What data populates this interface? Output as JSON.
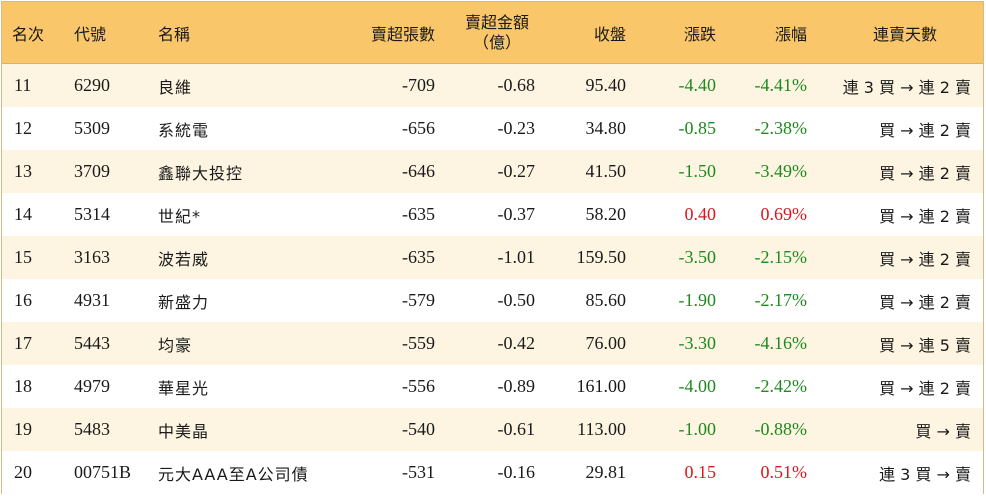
{
  "header": {
    "rank": "名次",
    "code": "代號",
    "name": "名稱",
    "sell_qty": "賣超張數",
    "sell_amt_line1": "賣超金額",
    "sell_amt_line2": "（億）",
    "close": "收盤",
    "change": "漲跌",
    "pct": "漲幅",
    "streak": "連賣天數"
  },
  "colors": {
    "header_bg": "#f9c669",
    "stripe_bg": "#fdf5e2",
    "down": "#1e8a1e",
    "up": "#e0141e"
  },
  "rows": [
    {
      "rank": "11",
      "code": "6290",
      "name": "良維",
      "qty": "-709",
      "amt": "-0.68",
      "close": "95.40",
      "chg": "-4.40",
      "pct": "-4.41%",
      "dir": "down",
      "streak": "連 3 買 → 連 2 賣"
    },
    {
      "rank": "12",
      "code": "5309",
      "name": "系統電",
      "qty": "-656",
      "amt": "-0.23",
      "close": "34.80",
      "chg": "-0.85",
      "pct": "-2.38%",
      "dir": "down",
      "streak": "買 → 連 2 賣"
    },
    {
      "rank": "13",
      "code": "3709",
      "name": "鑫聯大投控",
      "qty": "-646",
      "amt": "-0.27",
      "close": "41.50",
      "chg": "-1.50",
      "pct": "-3.49%",
      "dir": "down",
      "streak": "買 → 連 2 賣"
    },
    {
      "rank": "14",
      "code": "5314",
      "name": "世紀*",
      "qty": "-635",
      "amt": "-0.37",
      "close": "58.20",
      "chg": "0.40",
      "pct": "0.69%",
      "dir": "up",
      "streak": "買 → 連 2 賣"
    },
    {
      "rank": "15",
      "code": "3163",
      "name": "波若威",
      "qty": "-635",
      "amt": "-1.01",
      "close": "159.50",
      "chg": "-3.50",
      "pct": "-2.15%",
      "dir": "down",
      "streak": "買 → 連 2 賣"
    },
    {
      "rank": "16",
      "code": "4931",
      "name": "新盛力",
      "qty": "-579",
      "amt": "-0.50",
      "close": "85.60",
      "chg": "-1.90",
      "pct": "-2.17%",
      "dir": "down",
      "streak": "買 → 連 2 賣"
    },
    {
      "rank": "17",
      "code": "5443",
      "name": "均豪",
      "qty": "-559",
      "amt": "-0.42",
      "close": "76.00",
      "chg": "-3.30",
      "pct": "-4.16%",
      "dir": "down",
      "streak": "買 → 連 5 賣"
    },
    {
      "rank": "18",
      "code": "4979",
      "name": "華星光",
      "qty": "-556",
      "amt": "-0.89",
      "close": "161.00",
      "chg": "-4.00",
      "pct": "-2.42%",
      "dir": "down",
      "streak": "買 → 連 2 賣"
    },
    {
      "rank": "19",
      "code": "5483",
      "name": "中美晶",
      "qty": "-540",
      "amt": "-0.61",
      "close": "113.00",
      "chg": "-1.00",
      "pct": "-0.88%",
      "dir": "down",
      "streak": "買 → 賣"
    },
    {
      "rank": "20",
      "code": "00751B",
      "name": "元大AAA至A公司債",
      "qty": "-531",
      "amt": "-0.16",
      "close": "29.81",
      "chg": "0.15",
      "pct": "0.51%",
      "dir": "up",
      "streak": "連 3 買 → 賣"
    }
  ]
}
